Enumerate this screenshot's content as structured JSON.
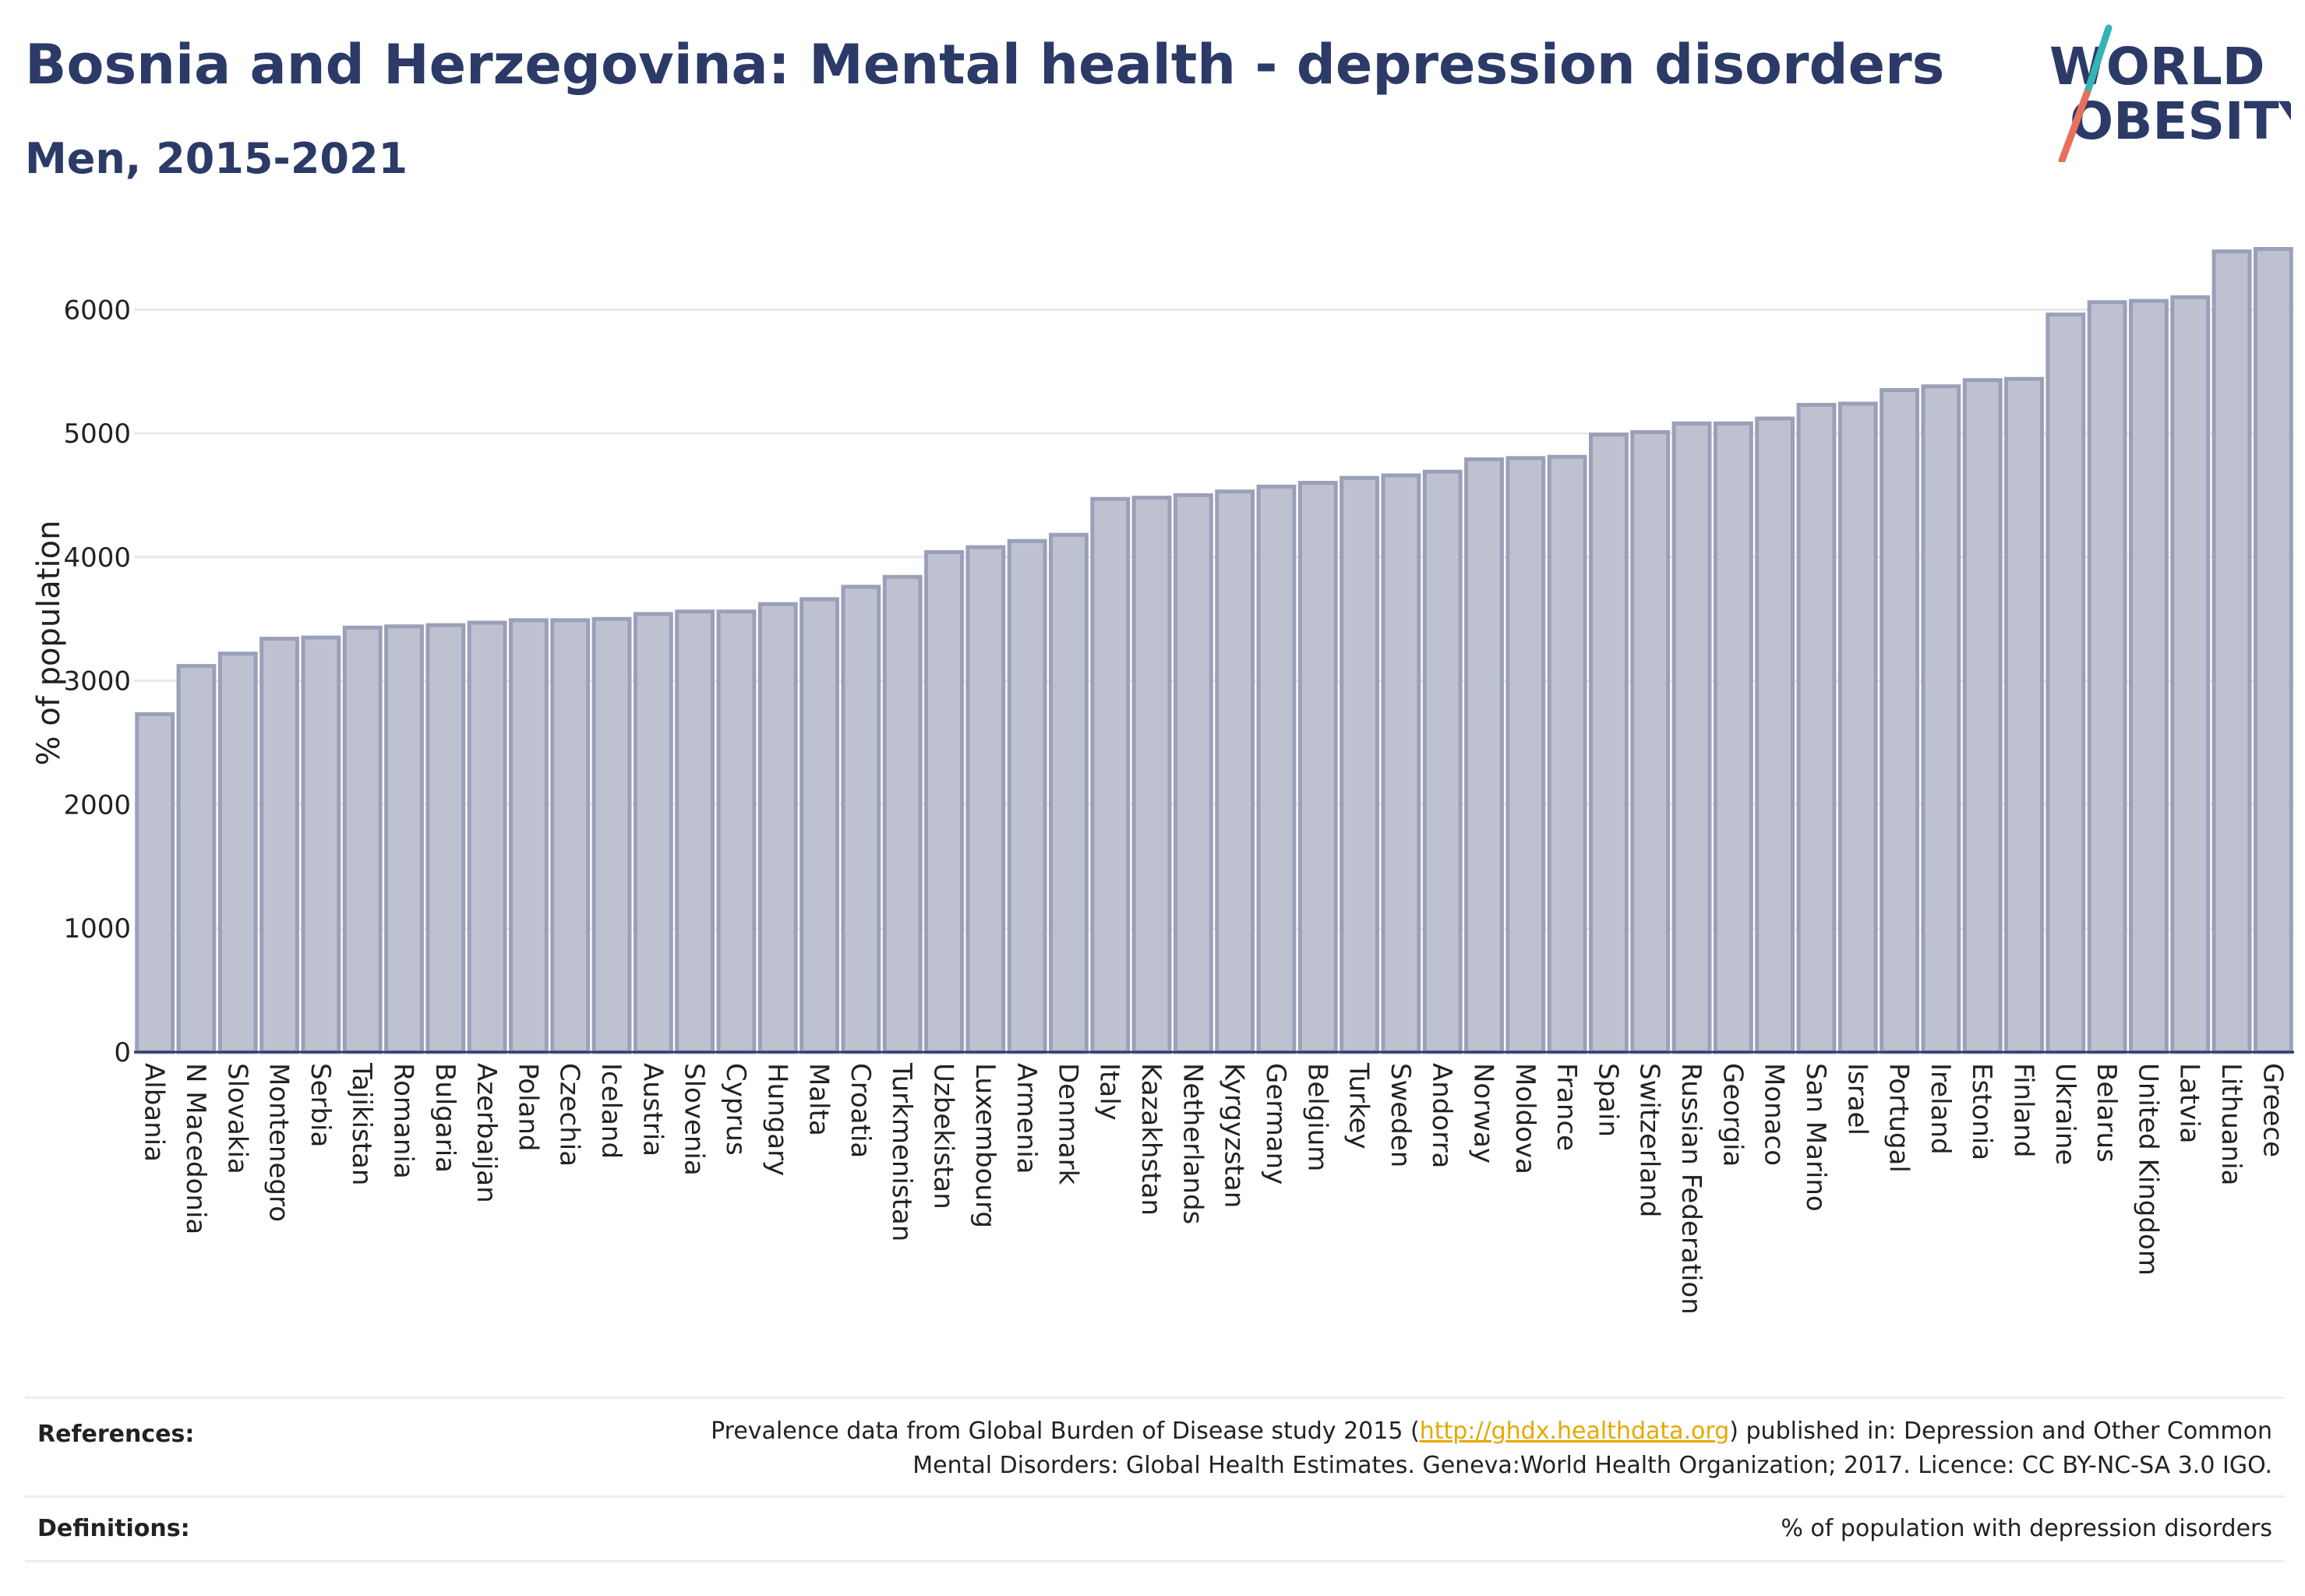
{
  "title": "Bosnia and Herzegovina: Mental health - depression disorders",
  "subtitle": "Men, 2015-2021",
  "logo": {
    "line1": "WORLD",
    "line2": "OBESITY"
  },
  "colors": {
    "title": "#2b3a67",
    "bar_fill": "#bec2d0",
    "bar_stroke": "#9aa0b8",
    "logo_slash_top": "#34b5b5",
    "logo_slash_bottom": "#e8705a",
    "link": "#e6a800"
  },
  "chart_data": {
    "type": "bar",
    "ylabel": "% of population",
    "ylim": [
      0,
      6600
    ],
    "yticks": [
      0,
      1000,
      2000,
      3000,
      4000,
      5000,
      6000
    ],
    "grid": true,
    "categories": [
      "Albania",
      "N Macedonia",
      "Slovakia",
      "Montenegro",
      "Serbia",
      "Tajikistan",
      "Romania",
      "Bulgaria",
      "Azerbaijan",
      "Poland",
      "Czechia",
      "Iceland",
      "Austria",
      "Slovenia",
      "Cyprus",
      "Hungary",
      "Malta",
      "Croatia",
      "Turkmenistan",
      "Uzbekistan",
      "Luxembourg",
      "Armenia",
      "Denmark",
      "Italy",
      "Kazakhstan",
      "Netherlands",
      "Kyrgyzstan",
      "Germany",
      "Belgium",
      "Turkey",
      "Sweden",
      "Andorra",
      "Norway",
      "Moldova",
      "France",
      "Spain",
      "Switzerland",
      "Russian Federation",
      "Georgia",
      "Monaco",
      "San Marino",
      "Israel",
      "Portugal",
      "Ireland",
      "Estonia",
      "Finland",
      "Ukraine",
      "Belarus",
      "United Kingdom",
      "Latvia",
      "Lithuania",
      "Greece"
    ],
    "values": [
      2730,
      3120,
      3220,
      3340,
      3350,
      3430,
      3440,
      3450,
      3470,
      3490,
      3490,
      3500,
      3540,
      3560,
      3560,
      3620,
      3660,
      3760,
      3840,
      4040,
      4080,
      4130,
      4180,
      4470,
      4480,
      4500,
      4530,
      4570,
      4600,
      4640,
      4660,
      4690,
      4790,
      4800,
      4810,
      4990,
      5010,
      5080,
      5080,
      5120,
      5230,
      5240,
      5350,
      5380,
      5430,
      5440,
      5960,
      6060,
      6070,
      6100,
      6470,
      6490
    ]
  },
  "footer": {
    "references_label": "References:",
    "references_text_before": "Prevalence data from Global Burden of Disease study 2015 (",
    "references_link": "http://ghdx.healthdata.org",
    "references_text_after": ") published in: Depression and Other Common",
    "references_line2": "Mental Disorders: Global Health Estimates. Geneva:World Health Organization; 2017. Licence: CC BY-NC-SA 3.0 IGO.",
    "definitions_label": "Definitions:",
    "definitions_text": "% of population with depression disorders"
  }
}
